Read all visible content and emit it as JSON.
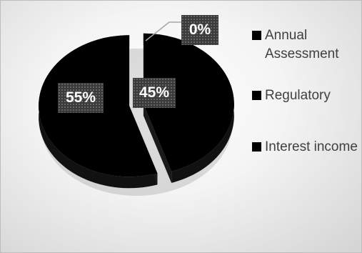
{
  "chart_data": {
    "type": "pie",
    "style": "3d-exploded",
    "categories": [
      "Annual Assessment",
      "Regulatory",
      "Interest income"
    ],
    "values": [
      45,
      0,
      55
    ],
    "data_labels": [
      "45%",
      "0%",
      "55%"
    ],
    "colors": [
      "#000000",
      "#000000",
      "#000000"
    ],
    "label_box_color": "#3a3a3a",
    "legend_position": "right"
  }
}
